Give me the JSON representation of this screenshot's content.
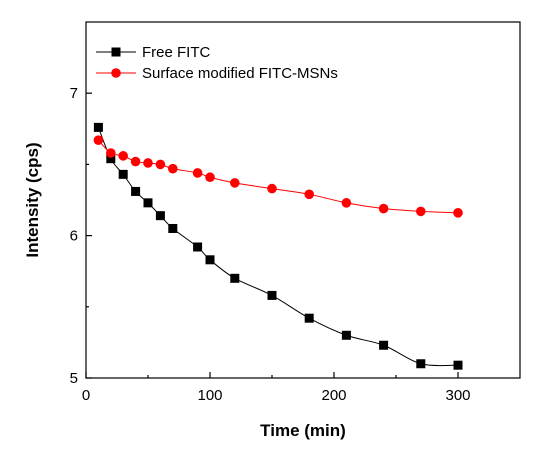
{
  "chart_data": {
    "type": "line",
    "title": "",
    "xlabel": "Time (min)",
    "ylabel": "Intensity (cps)",
    "xlim": [
      0,
      350
    ],
    "ylim": [
      5,
      7.5
    ],
    "x_ticks": [
      0,
      100,
      200,
      300
    ],
    "y_ticks": [
      5,
      6,
      7
    ],
    "grid": false,
    "legend_position": "top-left",
    "series": [
      {
        "name": "Free FITC",
        "color": "#000000",
        "marker": "square",
        "x": [
          10,
          20,
          30,
          40,
          50,
          60,
          70,
          90,
          100,
          120,
          150,
          180,
          210,
          240,
          270,
          300
        ],
        "y": [
          6.76,
          6.54,
          6.43,
          6.31,
          6.23,
          6.14,
          6.05,
          5.92,
          5.83,
          5.7,
          5.58,
          5.42,
          5.3,
          5.23,
          5.1,
          5.09
        ]
      },
      {
        "name": "Surface modified FITC-MSNs",
        "color": "#ff0000",
        "marker": "circle",
        "x": [
          10,
          20,
          30,
          40,
          50,
          60,
          70,
          90,
          100,
          120,
          150,
          180,
          210,
          240,
          270,
          300
        ],
        "y": [
          6.67,
          6.58,
          6.56,
          6.52,
          6.51,
          6.5,
          6.47,
          6.44,
          6.41,
          6.37,
          6.33,
          6.29,
          6.23,
          6.19,
          6.17,
          6.16
        ]
      }
    ]
  }
}
